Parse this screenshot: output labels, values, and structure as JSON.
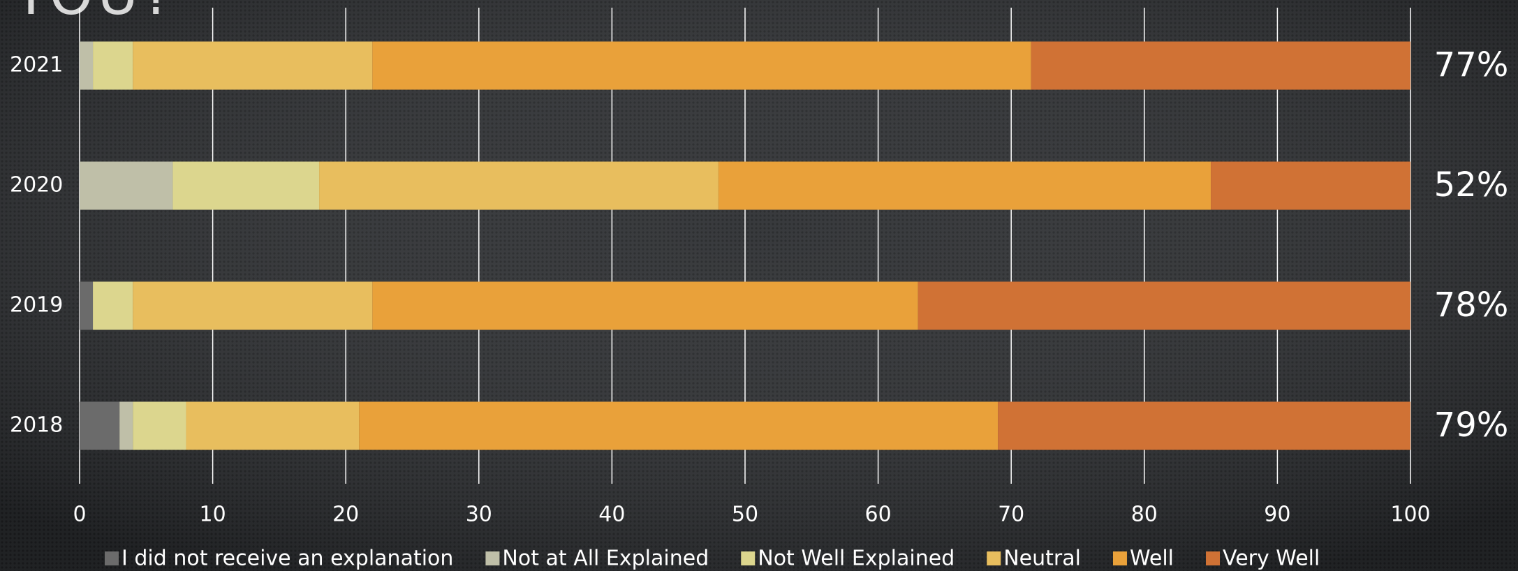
{
  "chart_data": {
    "type": "stacked_barh",
    "title": "YOU?",
    "categories": [
      "2021",
      "2020",
      "2019",
      "2018"
    ],
    "series": [
      {
        "name": "I did not receive an explanation",
        "color": "#6b6b6b",
        "values": [
          0,
          0,
          1,
          3
        ]
      },
      {
        "name": "Not at All Explained",
        "color": "#bfbfa8",
        "values": [
          1,
          7,
          0,
          1
        ]
      },
      {
        "name": "Not Well Explained",
        "color": "#dcd68e",
        "values": [
          3,
          11,
          3,
          4
        ]
      },
      {
        "name": "Neutral",
        "color": "#e8be5e",
        "values": [
          18,
          30,
          18,
          13
        ]
      },
      {
        "name": "Well",
        "color": "#e9a13a",
        "values": [
          49.5,
          37,
          41,
          48
        ]
      },
      {
        "name": "Very Well",
        "color": "#d07235",
        "values": [
          28.5,
          15,
          37,
          31
        ]
      }
    ],
    "annotations": [
      "77%",
      "52%",
      "78%",
      "79%"
    ],
    "xlim": [
      0,
      100
    ],
    "xticks": [
      0,
      10,
      20,
      30,
      40,
      50,
      60,
      70,
      80,
      90,
      100
    ],
    "grid": true
  }
}
